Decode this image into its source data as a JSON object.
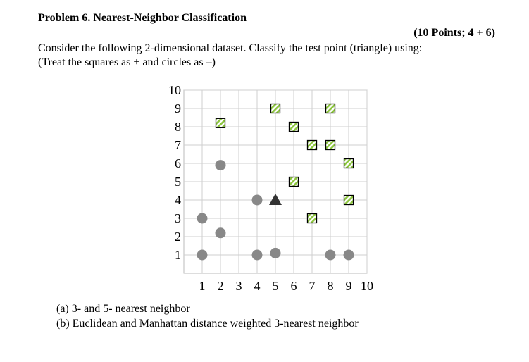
{
  "header": {
    "title": "Problem 6. Nearest-Neighbor Classification",
    "points": "(10 Points; 4 + 6)"
  },
  "intro": [
    "Consider the following 2-dimensional dataset. Classify the test point (triangle) using:",
    "(Treat the squares as + and circles as –)"
  ],
  "chart_data": {
    "type": "scatter",
    "xlim": [
      0,
      10
    ],
    "ylim": [
      0,
      10
    ],
    "xticks": [
      1,
      2,
      3,
      4,
      5,
      6,
      7,
      8,
      9,
      10
    ],
    "yticks": [
      1,
      2,
      3,
      4,
      5,
      6,
      7,
      8,
      9,
      10
    ],
    "grid": true,
    "series": [
      {
        "marker": "square",
        "color": "#8dc63f",
        "x": [
          2,
          5,
          8,
          6,
          7,
          8,
          9,
          6,
          9,
          7
        ],
        "y": [
          8.2,
          9,
          9,
          8,
          7,
          7,
          6,
          5,
          4,
          3
        ]
      },
      {
        "marker": "circle",
        "color": "#888888",
        "x": [
          2,
          4,
          1,
          2,
          1,
          4,
          5,
          8,
          9
        ],
        "y": [
          5.9,
          4,
          3,
          2.2,
          1,
          1,
          1.1,
          1,
          1
        ]
      },
      {
        "marker": "triangle",
        "color": "#333333",
        "x": [
          5
        ],
        "y": [
          4
        ]
      }
    ]
  },
  "parts": [
    "(a) 3- and 5- nearest neighbor",
    "(b) Euclidean and Manhattan distance weighted 3-nearest neighbor"
  ]
}
